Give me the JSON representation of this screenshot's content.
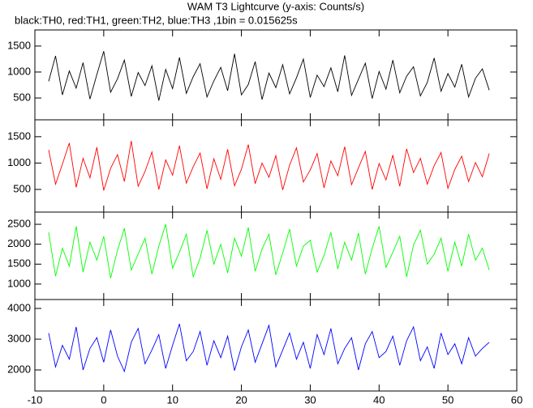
{
  "chart_data": [
    {
      "type": "line",
      "title": "WAM T3 Lightcurve (y-axis: Counts/s)",
      "subtitle": "black:TH0, red:TH1, green:TH2, blue:TH3 ,1bin = 0.015625s",
      "x": [
        -8,
        -7,
        -6,
        -5,
        -4,
        -3,
        -2,
        -1,
        0,
        1,
        2,
        3,
        4,
        5,
        6,
        7,
        8,
        9,
        10,
        11,
        12,
        13,
        14,
        15,
        16,
        17,
        18,
        19,
        20,
        21,
        22,
        23,
        24,
        25,
        26,
        27,
        28,
        29,
        30,
        31,
        32,
        33,
        34,
        35,
        36,
        37,
        38,
        39,
        40,
        41,
        42,
        43,
        44,
        45,
        46,
        47,
        48,
        49,
        50,
        51,
        52,
        53,
        54,
        55,
        56
      ],
      "series": [
        {
          "color": "#000000",
          "values": [
            820,
            1310,
            560,
            1020,
            690,
            1180,
            480,
            950,
            1400,
            610,
            870,
            1230,
            530,
            990,
            740,
            1120,
            450,
            1050,
            680,
            1280,
            590,
            910,
            1160,
            520,
            830,
            1090,
            640,
            1350,
            560,
            760,
            1200,
            470,
            980,
            700,
            1140,
            580,
            890,
            1250,
            510,
            940,
            720,
            1080,
            620,
            1320,
            550,
            860,
            1170,
            490,
            1010,
            670,
            1230,
            600,
            920,
            1100,
            540,
            800,
            1270,
            630,
            970,
            710,
            1150,
            520,
            880,
            1060,
            650
          ]
        }
      ],
      "xlim": [
        -10,
        60
      ],
      "xticks": [
        -10,
        0,
        10,
        20,
        30,
        40,
        50,
        60
      ],
      "ylim": [
        80,
        1810
      ],
      "yticks": [
        500,
        1000,
        1500
      ]
    },
    {
      "type": "line",
      "x": [
        -8,
        -7,
        -6,
        -5,
        -4,
        -3,
        -2,
        -1,
        0,
        1,
        2,
        3,
        4,
        5,
        6,
        7,
        8,
        9,
        10,
        11,
        12,
        13,
        14,
        15,
        16,
        17,
        18,
        19,
        20,
        21,
        22,
        23,
        24,
        25,
        26,
        27,
        28,
        29,
        30,
        31,
        32,
        33,
        34,
        35,
        36,
        37,
        38,
        39,
        40,
        41,
        42,
        43,
        44,
        45,
        46,
        47,
        48,
        49,
        50,
        51,
        52,
        53,
        54,
        55,
        56
      ],
      "series": [
        {
          "color": "#ff0000",
          "values": [
            1250,
            600,
            980,
            1380,
            540,
            1090,
            720,
            1300,
            480,
            900,
            1160,
            650,
            1420,
            560,
            840,
            1210,
            500,
            1060,
            770,
            1330,
            620,
            930,
            1190,
            510,
            1080,
            690,
            1260,
            570,
            880,
            1350,
            610,
            1000,
            730,
            1140,
            490,
            960,
            1290,
            640,
            870,
            1180,
            530,
            1040,
            760,
            1310,
            590,
            910,
            1220,
            500,
            990,
            680,
            1150,
            560,
            1270,
            820,
            1090,
            600,
            950,
            1200,
            520,
            880,
            1130,
            650,
            1010,
            740,
            1180
          ]
        }
      ],
      "xlim": [
        -10,
        60
      ],
      "xticks": [
        -10,
        0,
        10,
        20,
        30,
        40,
        50,
        60
      ],
      "ylim": [
        70,
        1820
      ],
      "yticks": [
        500,
        1000,
        1500
      ]
    },
    {
      "type": "line",
      "x": [
        -8,
        -7,
        -6,
        -5,
        -4,
        -3,
        -2,
        -1,
        0,
        1,
        2,
        3,
        4,
        5,
        6,
        7,
        8,
        9,
        10,
        11,
        12,
        13,
        14,
        15,
        16,
        17,
        18,
        19,
        20,
        21,
        22,
        23,
        24,
        25,
        26,
        27,
        28,
        29,
        30,
        31,
        32,
        33,
        34,
        35,
        36,
        37,
        38,
        39,
        40,
        41,
        42,
        43,
        44,
        45,
        46,
        47,
        48,
        49,
        50,
        51,
        52,
        53,
        54,
        55,
        56
      ],
      "series": [
        {
          "color": "#00ff00",
          "values": [
            2300,
            1200,
            1900,
            1450,
            2450,
            1300,
            2050,
            1600,
            2200,
            1150,
            1850,
            2400,
            1350,
            1750,
            2150,
            1250,
            1950,
            2500,
            1400,
            1800,
            2250,
            1180,
            1650,
            2350,
            1500,
            2000,
            1280,
            2150,
            1700,
            2420,
            1320,
            1880,
            2250,
            1230,
            1780,
            2380,
            1450,
            1950,
            2100,
            1300,
            1720,
            2300,
            1380,
            2050,
            1600,
            2280,
            1250,
            1900,
            2450,
            1420,
            1800,
            2200,
            1180,
            1980,
            2350,
            1500,
            1750,
            2150,
            1320,
            2050,
            1450,
            2250,
            1600,
            1900,
            1350
          ]
        }
      ],
      "xlim": [
        -10,
        60
      ],
      "xticks": [
        -10,
        0,
        10,
        20,
        30,
        40,
        50,
        60
      ],
      "ylim": [
        612,
        2806
      ],
      "yticks": [
        1000,
        1500,
        2000,
        2500
      ]
    },
    {
      "type": "line",
      "x": [
        -8,
        -7,
        -6,
        -5,
        -4,
        -3,
        -2,
        -1,
        0,
        1,
        2,
        3,
        4,
        5,
        6,
        7,
        8,
        9,
        10,
        11,
        12,
        13,
        14,
        15,
        16,
        17,
        18,
        19,
        20,
        21,
        22,
        23,
        24,
        25,
        26,
        27,
        28,
        29,
        30,
        31,
        32,
        33,
        34,
        35,
        36,
        37,
        38,
        39,
        40,
        41,
        42,
        43,
        44,
        45,
        46,
        47,
        48,
        49,
        50,
        51,
        52,
        53,
        54,
        55,
        56
      ],
      "series": [
        {
          "color": "#0000ff",
          "values": [
            3200,
            2100,
            2800,
            2350,
            3400,
            2000,
            2700,
            3050,
            2250,
            3300,
            2450,
            1950,
            2900,
            3350,
            2200,
            2650,
            3150,
            2050,
            2800,
            3500,
            2300,
            2600,
            3250,
            2150,
            2950,
            2400,
            3100,
            1980,
            2750,
            3300,
            2250,
            2850,
            3450,
            2100,
            2650,
            3200,
            2350,
            2900,
            2050,
            3150,
            2500,
            3350,
            2200,
            2700,
            3050,
            2000,
            2850,
            3250,
            2400,
            2600,
            3100,
            2150,
            2950,
            3400,
            2300,
            2750,
            2050,
            3200,
            2500,
            2850,
            2200,
            3050,
            2450,
            2700,
            2900
          ]
        }
      ],
      "xlim": [
        -10,
        60
      ],
      "xticks": [
        -10,
        0,
        10,
        20,
        30,
        40,
        50,
        60
      ],
      "ylim": [
        1316,
        4290
      ],
      "yticks": [
        2000,
        3000,
        4000
      ]
    }
  ]
}
